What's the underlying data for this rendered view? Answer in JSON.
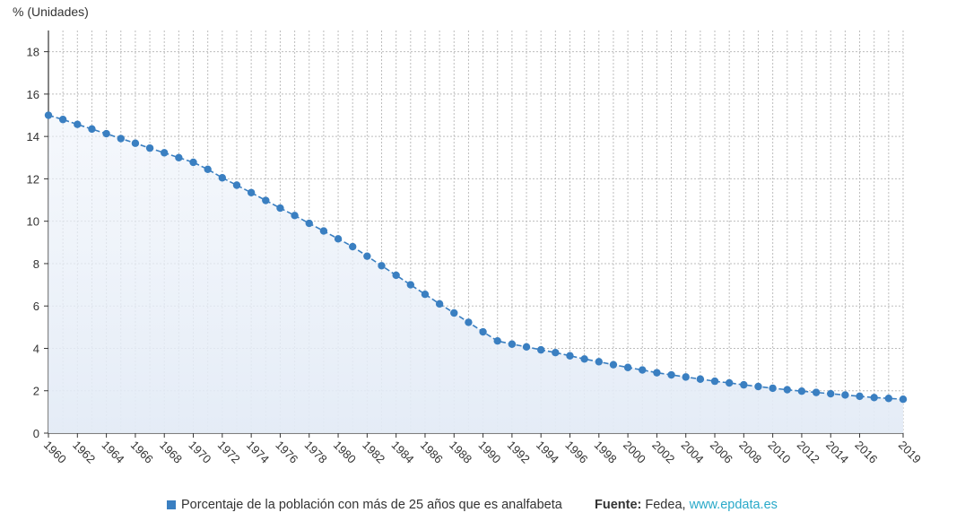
{
  "chart_data": {
    "type": "line",
    "y_unit_label": "% (Unidades)",
    "x": [
      1960,
      1961,
      1962,
      1963,
      1964,
      1965,
      1966,
      1967,
      1968,
      1969,
      1970,
      1971,
      1972,
      1973,
      1974,
      1975,
      1976,
      1977,
      1978,
      1979,
      1980,
      1981,
      1982,
      1983,
      1984,
      1985,
      1986,
      1987,
      1988,
      1989,
      1990,
      1991,
      1992,
      1993,
      1994,
      1995,
      1996,
      1997,
      1998,
      1999,
      2000,
      2001,
      2002,
      2003,
      2004,
      2005,
      2006,
      2007,
      2008,
      2009,
      2010,
      2011,
      2012,
      2013,
      2014,
      2015,
      2016,
      2017,
      2018,
      2019
    ],
    "series": [
      {
        "name": "Porcentaje de la población con más de 25 años que es analfabeta",
        "color": "#3a7fc1",
        "values": [
          15.0,
          14.8,
          14.57,
          14.35,
          14.13,
          13.9,
          13.68,
          13.45,
          13.23,
          13.0,
          12.78,
          12.45,
          12.05,
          11.7,
          11.35,
          10.98,
          10.62,
          10.27,
          9.9,
          9.54,
          9.17,
          8.8,
          8.35,
          7.9,
          7.45,
          7.0,
          6.55,
          6.1,
          5.67,
          5.23,
          4.78,
          4.35,
          4.2,
          4.07,
          3.93,
          3.8,
          3.65,
          3.5,
          3.37,
          3.23,
          3.1,
          2.98,
          2.85,
          2.75,
          2.65,
          2.55,
          2.45,
          2.37,
          2.28,
          2.2,
          2.12,
          2.05,
          1.98,
          1.92,
          1.86,
          1.8,
          1.74,
          1.68,
          1.64,
          1.6
        ]
      }
    ],
    "x_ticks": [
      "1960",
      "1962",
      "1964",
      "1966",
      "1968",
      "1970",
      "1972",
      "1974",
      "1976",
      "1978",
      "1980",
      "1982",
      "1984",
      "1986",
      "1988",
      "1990",
      "1992",
      "1994",
      "1996",
      "1998",
      "2000",
      "2002",
      "2004",
      "2006",
      "2008",
      "2010",
      "2012",
      "2014",
      "2016",
      "2019"
    ],
    "y_ticks": [
      "0",
      "2",
      "4",
      "6",
      "8",
      "10",
      "12",
      "14",
      "16",
      "18"
    ],
    "ylim": [
      0,
      19
    ],
    "xlim": [
      1960,
      2019
    ],
    "grid": true,
    "area_fill": true
  },
  "legend": {
    "series_label": "Porcentaje de la población con más de 25 años que es analfabeta",
    "source_label": "Fuente:",
    "source_name": " Fedea, ",
    "source_link": "www.epdata.es",
    "swatch_color": "#3a7fc1"
  }
}
